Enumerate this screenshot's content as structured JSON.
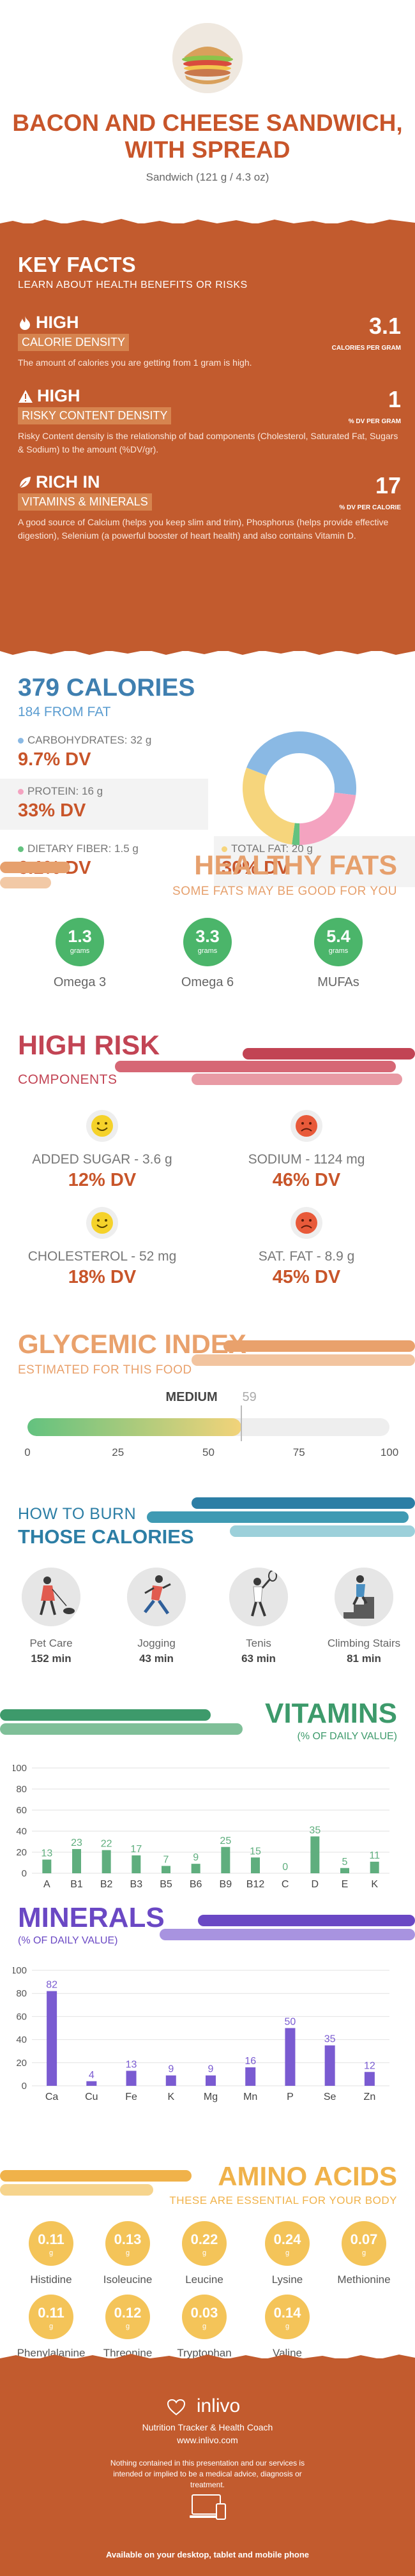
{
  "header": {
    "title": "BACON AND CHEESE SANDWICH, WITH SPREAD",
    "subtitle": "Sandwich (121 g / 4.3 oz)",
    "image": "sandwich-photo"
  },
  "key_facts": {
    "title": "KEY FACTS",
    "subtitle": "LEARN ABOUT HEALTH BENEFITS OR RISKS",
    "items": [
      {
        "icon": "flame-icon",
        "level": "HIGH",
        "category": "CALORIE DENSITY",
        "value": "3.1",
        "unit": "CALORIES PER GRAM",
        "description": "The amount of calories you are getting from 1 gram is high."
      },
      {
        "icon": "warning-icon",
        "level": "HIGH",
        "category": "RISKY CONTENT DENSITY",
        "value": "1",
        "unit": "% DV PER GRAM",
        "description": "Risky Content density is the relationship of bad components (Cholesterol, Saturated Fat, Sugars & Sodium) to the amount (%DV/gr)."
      },
      {
        "icon": "leaf-icon",
        "level": "RICH IN",
        "category": "VITAMINS & MINERALS",
        "value": "17",
        "unit": "% DV PER CALORIE",
        "description": "A good source of Calcium (helps you keep slim and trim), Phosphorus (helps provide effective digestion), Selenium (a powerful booster of heart health) and also contains Vitamin D."
      }
    ]
  },
  "calories": {
    "title": "379 CALORIES",
    "from_fat": "184 FROM FAT",
    "macros": [
      {
        "label": "CARBOHYDRATES: 32 g",
        "dv": "9.7% DV",
        "color": "#8ab9e4"
      },
      {
        "label": "PROTEIN: 16 g",
        "dv": "33% DV",
        "color": "#f4a3c0"
      },
      {
        "label": "DIETARY FIBER: 1.5 g",
        "dv": "6.1% DV",
        "color": "#63c27f"
      },
      {
        "label": "TOTAL FAT: 20 g",
        "dv": "30% DV",
        "color": "#f6d57c"
      }
    ],
    "donut": [
      {
        "grams": 32,
        "color": "#8ab9e4"
      },
      {
        "grams": 16,
        "color": "#f4a3c0"
      },
      {
        "grams": 1.5,
        "color": "#63c27f"
      },
      {
        "grams": 20,
        "color": "#f6d57c"
      }
    ]
  },
  "healthy_fats": {
    "title": "HEALTHY FATS",
    "subtitle": "SOME FATS MAY BE GOOD FOR YOU",
    "unit": "grams",
    "items": [
      {
        "value": "1.3",
        "name": "Omega 3"
      },
      {
        "value": "3.3",
        "name": "Omega 6"
      },
      {
        "value": "5.4",
        "name": "MUFAs"
      }
    ]
  },
  "high_risk": {
    "title": "HIGH RISK",
    "subtitle": "COMPONENTS",
    "items": [
      {
        "label": "ADDED SUGAR - 3.6 g",
        "dv": "12% DV",
        "mood": "happy"
      },
      {
        "label": "SODIUM - 1124 mg",
        "dv": "46% DV",
        "mood": "sad"
      },
      {
        "label": "CHOLESTEROL - 52 mg",
        "dv": "18% DV",
        "mood": "happy"
      },
      {
        "label": "SAT. FAT - 8.9 g",
        "dv": "45% DV",
        "mood": "sad"
      }
    ]
  },
  "glycemic": {
    "title": "GLYCEMIC INDEX",
    "subtitle": "ESTIMATED FOR THIS FOOD",
    "level": "MEDIUM",
    "value": 59,
    "ticks": [
      "0",
      "25",
      "50",
      "75",
      "100"
    ]
  },
  "burn": {
    "title_line1": "HOW TO BURN",
    "title_line2": "THOSE CALORIES",
    "activities": [
      {
        "name": "Pet Care",
        "minutes": "152 min",
        "icon": "dog-walking-icon"
      },
      {
        "name": "Jogging",
        "minutes": "43 min",
        "icon": "jogging-icon"
      },
      {
        "name": "Tenis",
        "minutes": "63 min",
        "icon": "tennis-icon"
      },
      {
        "name": "Climbing Stairs",
        "minutes": "81 min",
        "icon": "stairs-icon"
      }
    ]
  },
  "vitamins": {
    "title": "VITAMINS",
    "subtitle": "(% OF DAILY VALUE)",
    "chart_data": {
      "type": "bar",
      "categories": [
        "A",
        "B1",
        "B2",
        "B3",
        "B5",
        "B6",
        "B9",
        "B12",
        "C",
        "D",
        "E",
        "K"
      ],
      "values": [
        13,
        23,
        22,
        17,
        7,
        9,
        25,
        15,
        0,
        35,
        5,
        11
      ],
      "ylim": [
        0,
        100
      ],
      "yticks": [
        "0",
        "20",
        "40",
        "60",
        "80",
        "100"
      ],
      "color": "#5fae7e"
    }
  },
  "minerals": {
    "title": "MINERALS",
    "subtitle": "(% OF DAILY VALUE)",
    "chart_data": {
      "type": "bar",
      "categories": [
        "Ca",
        "Cu",
        "Fe",
        "K",
        "Mg",
        "Mn",
        "P",
        "Se",
        "Zn"
      ],
      "values": [
        82,
        4,
        13,
        9,
        9,
        16,
        50,
        35,
        12
      ],
      "ylim": [
        0,
        100
      ],
      "yticks": [
        "0",
        "20",
        "40",
        "60",
        "80",
        "100"
      ],
      "color": "#7a5bd1"
    }
  },
  "amino_acids": {
    "title": "AMINO ACIDS",
    "subtitle": "THESE ARE ESSENTIAL FOR YOUR BODY",
    "unit": "g",
    "items": [
      {
        "value": "0.11",
        "name": "Histidine"
      },
      {
        "value": "0.13",
        "name": "Isoleucine"
      },
      {
        "value": "0.22",
        "name": "Leucine"
      },
      {
        "value": "0.24",
        "name": "Lysine"
      },
      {
        "value": "0.07",
        "name": "Methionine"
      },
      {
        "value": "0.11",
        "name": "Phenylalanine"
      },
      {
        "value": "0.12",
        "name": "Threonine"
      },
      {
        "value": "0.03",
        "name": "Tryptophan"
      },
      {
        "value": "0.14",
        "name": "Valine"
      }
    ]
  },
  "footer": {
    "brand": "inlivo",
    "tagline": "Nutrition Tracker & Health Coach",
    "url": "www.inlivo.com",
    "disclaimer": "Nothing contained in this presentation and our services is intended or implied to be a medical advice, diagnosis or treatment.",
    "availability": "Available on your desktop, tablet and mobile phone"
  }
}
